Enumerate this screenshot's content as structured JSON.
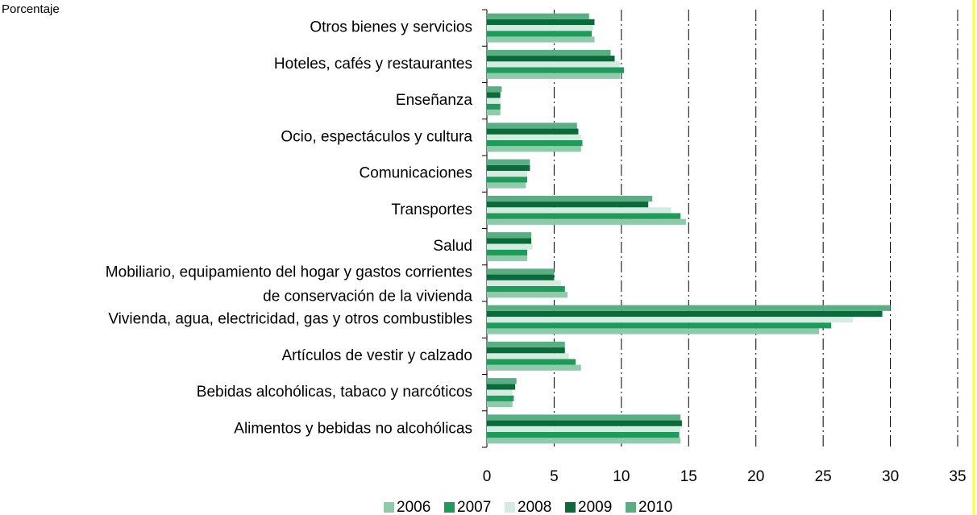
{
  "chart_data": {
    "type": "hbar",
    "y_label": "Porcentaje",
    "categories": [
      "Otros bienes y servicios",
      "Hoteles, cafés y restaurantes",
      "Enseñanza",
      "Ocio, espectáculos y cultura",
      "Comunicaciones",
      "Transportes",
      "Salud",
      [
        "Mobiliario, equipamiento del hogar y gastos corrientes",
        "de conservación de la vivienda"
      ],
      "Vivienda, agua, electricidad, gas y otros combustibles",
      "Artículos de vestir y calzado",
      "Bebidas alcohólicas, tabaco y narcóticos",
      "Alimentos y bebidas no alcohólicas"
    ],
    "series": [
      {
        "name": "2006",
        "color": "#8fcbab",
        "values": [
          8.0,
          9.9,
          1.0,
          7.0,
          2.9,
          14.8,
          3.0,
          6.0,
          24.7,
          7.0,
          1.9,
          14.4
        ]
      },
      {
        "name": "2007",
        "color": "#1e9a5a",
        "values": [
          7.8,
          10.2,
          1.0,
          7.1,
          3.0,
          14.4,
          3.0,
          5.8,
          25.6,
          6.6,
          2.0,
          14.3
        ]
      },
      {
        "name": "2008",
        "color": "#d4ece0",
        "values": [
          7.9,
          9.9,
          1.0,
          7.0,
          3.0,
          13.7,
          3.4,
          5.5,
          27.2,
          6.1,
          1.9,
          14.4
        ]
      },
      {
        "name": "2009",
        "color": "#0b6a3a",
        "values": [
          8.0,
          9.5,
          1.0,
          6.8,
          3.2,
          12.0,
          3.3,
          5.0,
          29.4,
          5.8,
          2.1,
          14.5
        ]
      },
      {
        "name": "2010",
        "color": "#5aae84",
        "values": [
          7.6,
          9.2,
          1.1,
          6.7,
          3.2,
          12.3,
          3.3,
          5.0,
          30.0,
          5.8,
          2.2,
          14.4
        ]
      }
    ],
    "xlim": [
      0,
      35
    ],
    "xticks": [
      0,
      5,
      10,
      15,
      20,
      25,
      30,
      35
    ],
    "grid": true
  }
}
